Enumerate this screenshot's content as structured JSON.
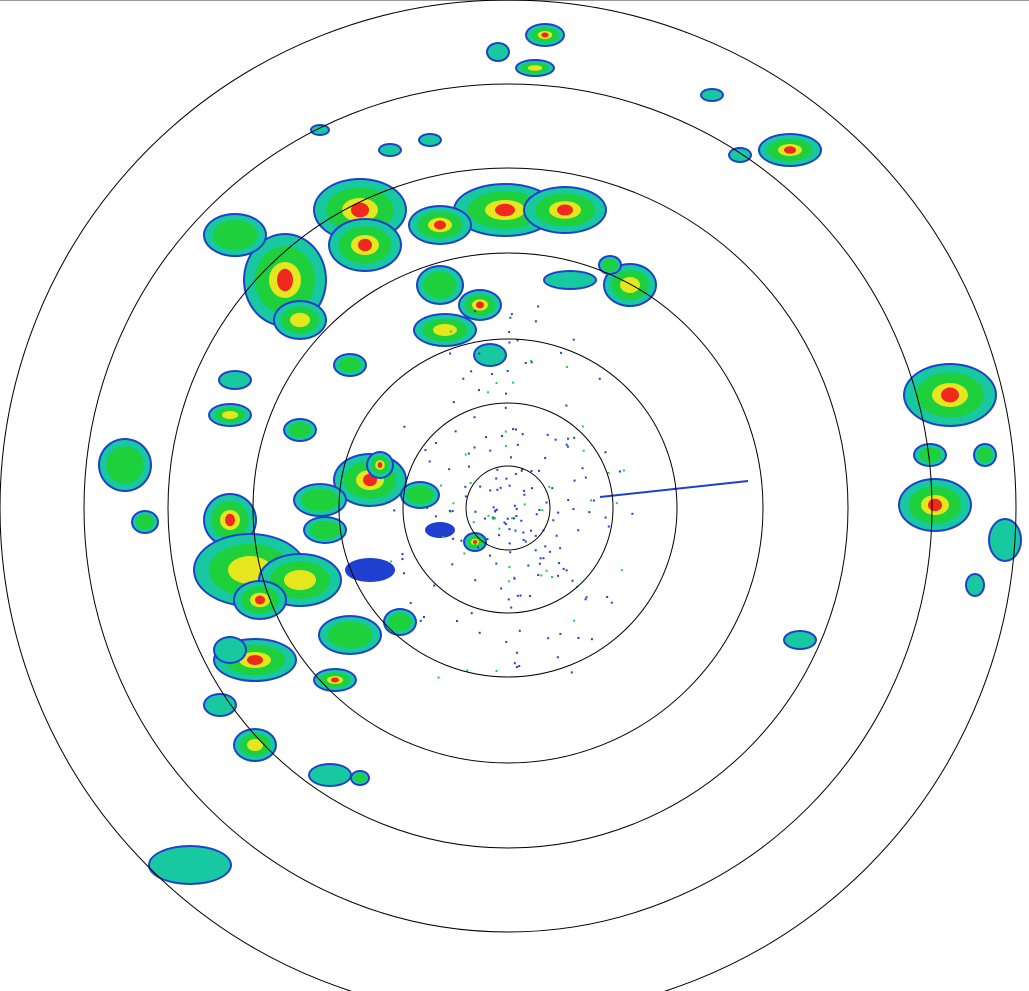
{
  "display": {
    "type": "radar-ppi",
    "range_ring_count": 7,
    "colors": {
      "ring": "#000000",
      "weak": "#1f3fd0",
      "light": "#17c8a0",
      "moderate": "#1ed03c",
      "heavy": "#e6e61e",
      "intense": "#f0281e",
      "border": "#999999"
    }
  }
}
